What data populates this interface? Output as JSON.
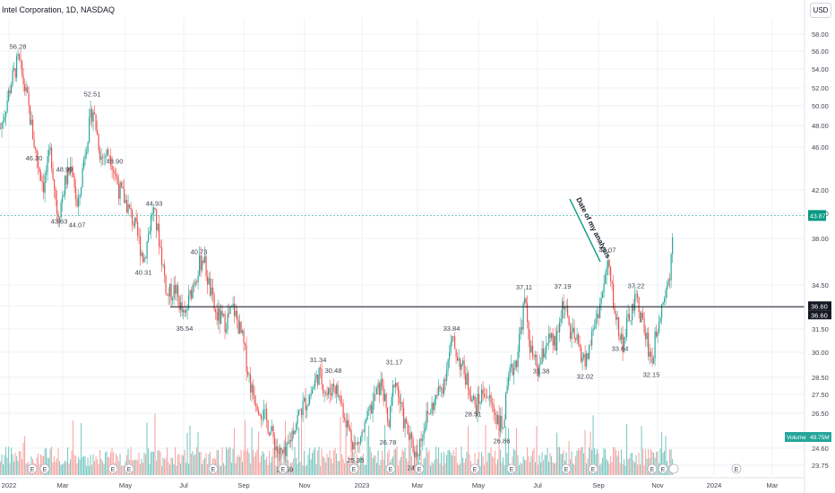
{
  "header": {
    "title": "Intel Corporation, 1D, NASDAQ",
    "currency_button": "USD"
  },
  "colors": {
    "up": "#26a69a",
    "down": "#ef5350",
    "vol_up": "#80cbc4",
    "vol_down": "#f7a9a7",
    "last_price_bg": "#089981",
    "volume_badge_bg": "#26a69a",
    "marker_line": "#131722",
    "marker_bg": "#131722",
    "annotation": "#089981",
    "grid": "#eef1f5",
    "axis_text": "#434651"
  },
  "chart_data": {
    "type": "candlestick",
    "title": "Intel Corporation, 1D, NASDAQ",
    "xlabel": "",
    "ylabel": "",
    "ylim": [
      23.2,
      59.6
    ],
    "x_ticks": [
      "2022",
      "Mar",
      "May",
      "Jul",
      "Sep",
      "Nov",
      "2023",
      "Mar",
      "May",
      "Jul",
      "Sep",
      "Nov",
      "2024",
      "Mar"
    ],
    "y_ticks": [
      "58.00",
      "56.00",
      "54.00",
      "52.00",
      "50.00",
      "48.00",
      "46.00",
      "42.00",
      "40.00",
      "38.00",
      "34.50",
      "33.00",
      "31.50",
      "30.00",
      "28.50",
      "27.50",
      "26.50",
      "24.60",
      "23.75"
    ],
    "last_price": "43.87",
    "horizontal_line_prices": [
      "36.60",
      "36.60"
    ],
    "volume_label": "Volume",
    "volume_value": "49.75M",
    "price_path": [
      [
        0,
        50.8
      ],
      [
        12,
        54.5
      ],
      [
        20,
        56.28
      ],
      [
        30,
        53.0
      ],
      [
        40,
        48.5
      ],
      [
        48,
        46.3
      ],
      [
        56,
        48.99
      ],
      [
        64,
        43.63
      ],
      [
        72,
        46.5
      ],
      [
        80,
        48.0
      ],
      [
        86,
        44.07
      ],
      [
        94,
        49.0
      ],
      [
        103,
        52.51
      ],
      [
        112,
        48.5
      ],
      [
        122,
        48.9
      ],
      [
        132,
        46.0
      ],
      [
        140,
        44.93
      ],
      [
        150,
        43.0
      ],
      [
        160,
        40.31
      ],
      [
        170,
        44.5
      ],
      [
        177,
        42.0
      ],
      [
        186,
        37.5
      ],
      [
        195,
        38.0
      ],
      [
        205,
        35.54
      ],
      [
        215,
        38.5
      ],
      [
        226,
        40.73
      ],
      [
        232,
        38.5
      ],
      [
        240,
        36.0
      ],
      [
        250,
        35.3
      ],
      [
        260,
        36.5
      ],
      [
        270,
        34.0
      ],
      [
        280,
        30.0
      ],
      [
        290,
        28.5
      ],
      [
        300,
        27.0
      ],
      [
        310,
        25.0
      ],
      [
        318,
        24.59
      ],
      [
        327,
        27.0
      ],
      [
        336,
        28.5
      ],
      [
        345,
        29.5
      ],
      [
        355,
        31.34
      ],
      [
        365,
        29.5
      ],
      [
        372,
        30.48
      ],
      [
        380,
        29.0
      ],
      [
        390,
        26.5
      ],
      [
        397,
        25.35
      ],
      [
        407,
        27.0
      ],
      [
        418,
        29.5
      ],
      [
        426,
        30.5
      ],
      [
        433,
        26.78
      ],
      [
        440,
        31.17
      ],
      [
        448,
        28.0
      ],
      [
        457,
        26.0
      ],
      [
        464,
        24.73
      ],
      [
        474,
        27.5
      ],
      [
        484,
        29.0
      ],
      [
        494,
        30.5
      ],
      [
        504,
        33.84
      ],
      [
        514,
        32.0
      ],
      [
        524,
        30.0
      ],
      [
        530,
        28.51
      ],
      [
        540,
        30.0
      ],
      [
        550,
        28.5
      ],
      [
        560,
        26.86
      ],
      [
        568,
        31.0
      ],
      [
        576,
        32.5
      ],
      [
        585,
        37.11
      ],
      [
        592,
        33.0
      ],
      [
        600,
        31.38
      ],
      [
        610,
        34.0
      ],
      [
        620,
        33.5
      ],
      [
        628,
        37.19
      ],
      [
        636,
        34.5
      ],
      [
        645,
        33.5
      ],
      [
        653,
        32.02
      ],
      [
        662,
        35.0
      ],
      [
        670,
        37.0
      ],
      [
        678,
        40.07
      ],
      [
        686,
        36.0
      ],
      [
        694,
        33.64
      ],
      [
        703,
        36.0
      ],
      [
        710,
        37.22
      ],
      [
        718,
        35.0
      ],
      [
        727,
        32.15
      ],
      [
        735,
        36.0
      ],
      [
        742,
        38.0
      ],
      [
        747,
        39.0
      ],
      [
        751,
        43.87
      ]
    ],
    "price_labels": [
      {
        "t": 20,
        "text": "56.28",
        "pos": "above"
      },
      {
        "t": 38,
        "text": "46.30",
        "pos": "below"
      },
      {
        "t": 72,
        "text": "48.99",
        "pos": "above"
      },
      {
        "t": 66,
        "text": "43.63",
        "pos": "below"
      },
      {
        "t": 86,
        "text": "44.07",
        "pos": "below"
      },
      {
        "t": 103,
        "text": "52.51",
        "pos": "above"
      },
      {
        "t": 128,
        "text": "48.90",
        "pos": "above"
      },
      {
        "t": 172,
        "text": "44.93",
        "pos": "above"
      },
      {
        "t": 160,
        "text": "40.31",
        "pos": "below"
      },
      {
        "t": 206,
        "text": "35.54",
        "pos": "below"
      },
      {
        "t": 222,
        "text": "40.73",
        "pos": "above"
      },
      {
        "t": 318,
        "text": "24.59",
        "pos": "below"
      },
      {
        "t": 355,
        "text": "31.34",
        "pos": "above"
      },
      {
        "t": 372,
        "text": "30.48",
        "pos": "above"
      },
      {
        "t": 397,
        "text": "25.35",
        "pos": "below"
      },
      {
        "t": 433,
        "text": "26.78",
        "pos": "below"
      },
      {
        "t": 440,
        "text": "31.17",
        "pos": "above"
      },
      {
        "t": 464,
        "text": "24.73",
        "pos": "below"
      },
      {
        "t": 504,
        "text": "33.84",
        "pos": "above"
      },
      {
        "t": 528,
        "text": "28.51",
        "pos": "below"
      },
      {
        "t": 560,
        "text": "26.86",
        "pos": "below"
      },
      {
        "t": 585,
        "text": "37.11",
        "pos": "above"
      },
      {
        "t": 604,
        "text": "31.38",
        "pos": "below"
      },
      {
        "t": 628,
        "text": "37.19",
        "pos": "above"
      },
      {
        "t": 653,
        "text": "32.02",
        "pos": "below"
      },
      {
        "t": 678,
        "text": "40.07",
        "pos": "above"
      },
      {
        "t": 692,
        "text": "33.64",
        "pos": "below"
      },
      {
        "t": 710,
        "text": "37.22",
        "pos": "above"
      },
      {
        "t": 727,
        "text": "32.15",
        "pos": "below"
      }
    ],
    "annotation": {
      "text": "Date of my analysis"
    },
    "earnings_marker_label": "E"
  }
}
